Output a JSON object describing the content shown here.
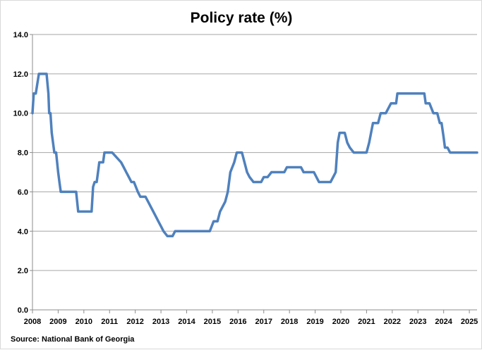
{
  "chart_data": {
    "type": "line",
    "title": "Policy rate (%)",
    "xlabel": "",
    "ylabel": "",
    "source": "Source:  National Bank of Georgia",
    "ylim": [
      0,
      14
    ],
    "yticks": [
      "0.0",
      "2.0",
      "4.0",
      "6.0",
      "8.0",
      "10.0",
      "12.0",
      "14.0"
    ],
    "xlim": [
      2008,
      2025.3
    ],
    "xticks": [
      "2008",
      "2009",
      "2010",
      "2011",
      "2012",
      "2013",
      "2014",
      "2015",
      "2016",
      "2017",
      "2018",
      "2019",
      "2020",
      "2021",
      "2022",
      "2023",
      "2024",
      "2025"
    ],
    "grid": "horizontal",
    "line_color": "#4f81bd",
    "series": [
      {
        "x": [
          2008.0,
          2008.05,
          2008.13,
          2008.25,
          2008.55,
          2008.62,
          2008.65,
          2008.7,
          2008.75,
          2008.85,
          2008.92,
          2009.0,
          2009.05,
          2009.1,
          2009.15,
          2009.2,
          2009.25,
          2009.7,
          2009.78,
          2010.3,
          2010.36,
          2010.42,
          2010.5,
          2010.55,
          2010.6,
          2010.67,
          2010.75,
          2010.8,
          2011.0,
          2011.1,
          2011.45,
          2011.55,
          2011.65,
          2011.75,
          2011.85,
          2011.95,
          2012.1,
          2012.2,
          2012.4,
          2012.5,
          2012.8,
          2012.9,
          2013.0,
          2013.1,
          2013.25,
          2013.35,
          2013.45,
          2013.55,
          2013.9,
          2014.0,
          2014.9,
          2015.05,
          2015.2,
          2015.3,
          2015.5,
          2015.6,
          2015.7,
          2015.85,
          2015.95,
          2016.15,
          2016.35,
          2016.45,
          2016.6,
          2016.9,
          2017.0,
          2017.15,
          2017.3,
          2017.8,
          2017.9,
          2018.45,
          2018.55,
          2018.95,
          2019.05,
          2019.15,
          2019.25,
          2019.6,
          2019.7,
          2019.8,
          2019.88,
          2019.95,
          2020.15,
          2020.25,
          2020.35,
          2020.5,
          2021.0,
          2021.1,
          2021.25,
          2021.45,
          2021.55,
          2021.75,
          2021.95,
          2022.15,
          2022.2,
          2023.25,
          2023.3,
          2023.45,
          2023.6,
          2023.75,
          2023.85,
          2023.92,
          2024.0,
          2024.05,
          2024.15,
          2024.25,
          2025.3
        ],
        "values": [
          10.0,
          11.0,
          11.0,
          12.0,
          12.0,
          11.0,
          10.0,
          10.0,
          9.0,
          8.0,
          8.0,
          7.0,
          6.5,
          6.0,
          6.0,
          6.0,
          6.0,
          6.0,
          5.0,
          5.0,
          6.25,
          6.5,
          6.5,
          7.0,
          7.5,
          7.5,
          7.5,
          8.0,
          8.0,
          8.0,
          7.5,
          7.25,
          7.0,
          6.75,
          6.5,
          6.5,
          6.0,
          5.75,
          5.75,
          5.5,
          4.75,
          4.5,
          4.25,
          4.0,
          3.75,
          3.75,
          3.75,
          4.0,
          4.0,
          4.0,
          4.0,
          4.5,
          4.5,
          5.0,
          5.5,
          6.0,
          7.0,
          7.5,
          8.0,
          8.0,
          7.0,
          6.75,
          6.5,
          6.5,
          6.75,
          6.75,
          7.0,
          7.0,
          7.25,
          7.25,
          7.0,
          7.0,
          6.75,
          6.5,
          6.5,
          6.5,
          6.75,
          7.0,
          8.5,
          9.0,
          9.0,
          8.5,
          8.25,
          8.0,
          8.0,
          8.5,
          9.5,
          9.5,
          10.0,
          10.0,
          10.5,
          10.5,
          11.0,
          11.0,
          10.5,
          10.5,
          10.0,
          10.0,
          9.5,
          9.5,
          8.75,
          8.25,
          8.25,
          8.0,
          8.0
        ]
      }
    ]
  }
}
